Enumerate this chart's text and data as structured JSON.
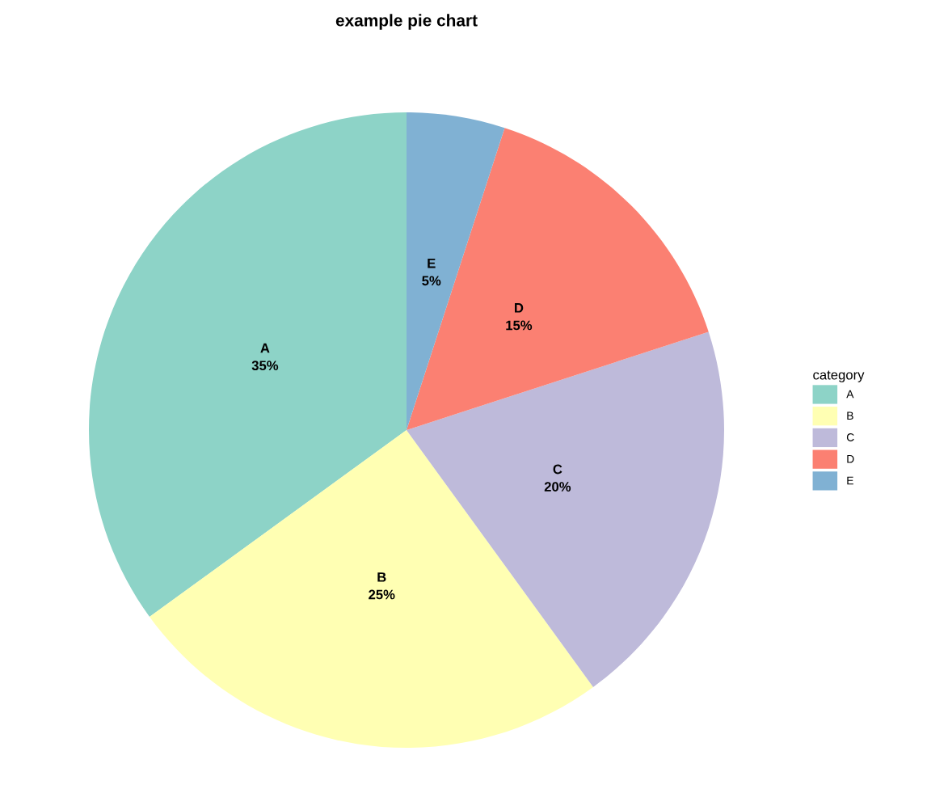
{
  "chart_data": {
    "type": "pie",
    "title": "example pie chart",
    "legend_title": "category",
    "categories": [
      "A",
      "B",
      "C",
      "D",
      "E"
    ],
    "values": [
      35,
      25,
      20,
      15,
      5
    ],
    "value_labels": [
      "35%",
      "25%",
      "20%",
      "15%",
      "5%"
    ],
    "colors": [
      "#8dd3c7",
      "#ffffb3",
      "#bebada",
      "#fb8072",
      "#80b1d3"
    ],
    "legend": "right"
  }
}
